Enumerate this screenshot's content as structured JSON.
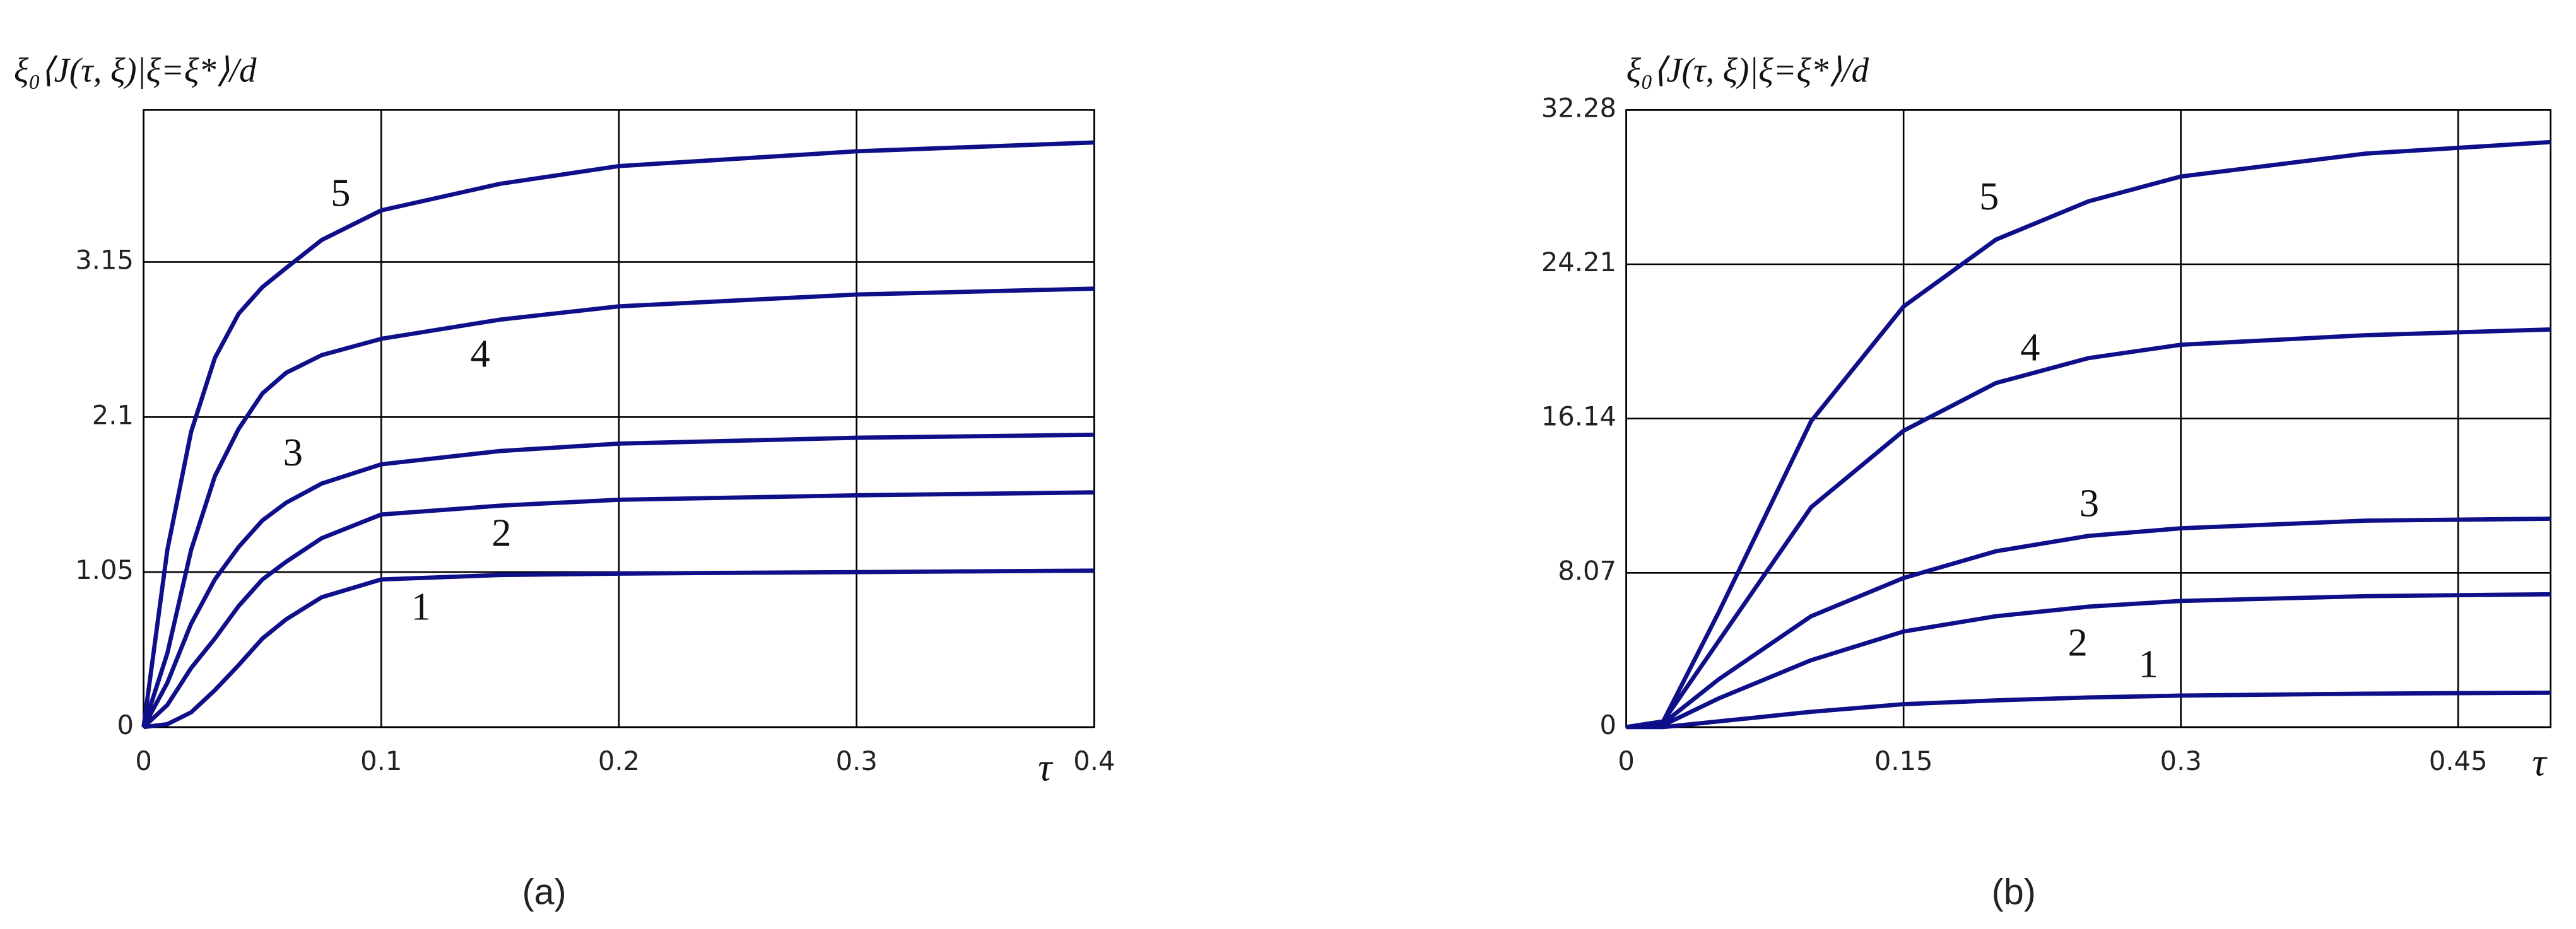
{
  "chart_data": [
    {
      "type": "line",
      "caption": "(a)",
      "y_label": "ξ₀⟨J(τ, ξ)|ξ=ξ*⟩/d",
      "x_label": "τ",
      "x": [
        0,
        0.01,
        0.02,
        0.03,
        0.04,
        0.05,
        0.06,
        0.075,
        0.1,
        0.15,
        0.2,
        0.3,
        0.4
      ],
      "xlim": [
        0,
        0.4
      ],
      "xticks": [
        0,
        0.1,
        0.2,
        0.3,
        0.4
      ],
      "ylim": [
        0,
        4.18
      ],
      "yticks": [
        0,
        1.05,
        2.1,
        3.15
      ],
      "grid": true,
      "series": [
        {
          "name": "1",
          "color": "#0f0f8a",
          "values": [
            0,
            0.02,
            0.1,
            0.25,
            0.42,
            0.6,
            0.73,
            0.88,
            1.0,
            1.03,
            1.04,
            1.05,
            1.06
          ]
        },
        {
          "name": "2",
          "color": "#0f0f8a",
          "values": [
            0,
            0.15,
            0.4,
            0.6,
            0.82,
            1.0,
            1.12,
            1.28,
            1.44,
            1.5,
            1.54,
            1.57,
            1.59
          ]
        },
        {
          "name": "3",
          "color": "#0f0f8a",
          "values": [
            0,
            0.3,
            0.7,
            1.0,
            1.22,
            1.4,
            1.52,
            1.65,
            1.78,
            1.87,
            1.92,
            1.96,
            1.98
          ]
        },
        {
          "name": "4",
          "color": "#0f0f8a",
          "values": [
            0,
            0.5,
            1.2,
            1.7,
            2.02,
            2.26,
            2.4,
            2.52,
            2.63,
            2.76,
            2.85,
            2.93,
            2.97
          ]
        },
        {
          "name": "5",
          "color": "#0f0f8a",
          "values": [
            0,
            1.2,
            2.0,
            2.5,
            2.8,
            2.98,
            3.11,
            3.3,
            3.5,
            3.68,
            3.8,
            3.9,
            3.96
          ]
        }
      ]
    },
    {
      "type": "line",
      "caption": "(b)",
      "y_label": "ξ₀⟨J(τ, ξ)|ξ=ξ*⟩/d",
      "x_label": "τ",
      "x": [
        0,
        0.02,
        0.05,
        0.1,
        0.15,
        0.2,
        0.25,
        0.3,
        0.4,
        0.5
      ],
      "xlim": [
        0,
        0.5
      ],
      "xticks": [
        0,
        0.15,
        0.3,
        0.45
      ],
      "ylim": [
        0,
        32.28
      ],
      "yticks": [
        0,
        8.07,
        16.14,
        24.21,
        32.28
      ],
      "grid": true,
      "series": [
        {
          "name": "1",
          "color": "#0f0f8a",
          "values": [
            0,
            0,
            0.3,
            0.8,
            1.2,
            1.4,
            1.55,
            1.65,
            1.75,
            1.8
          ]
        },
        {
          "name": "2",
          "color": "#0f0f8a",
          "values": [
            0,
            0.1,
            1.5,
            3.5,
            5,
            5.8,
            6.3,
            6.6,
            6.85,
            6.95
          ]
        },
        {
          "name": "3",
          "color": "#0f0f8a",
          "values": [
            0,
            0.2,
            2.5,
            5.8,
            7.8,
            9.2,
            10,
            10.4,
            10.8,
            10.9
          ]
        },
        {
          "name": "4",
          "color": "#0f0f8a",
          "values": [
            0,
            0.3,
            4.5,
            11.5,
            15.5,
            18,
            19.3,
            20,
            20.5,
            20.8
          ]
        },
        {
          "name": "5",
          "color": "#0f0f8a",
          "values": [
            0,
            0.3,
            6,
            16,
            22,
            25.5,
            27.5,
            28.8,
            30,
            30.6
          ]
        }
      ]
    }
  ]
}
